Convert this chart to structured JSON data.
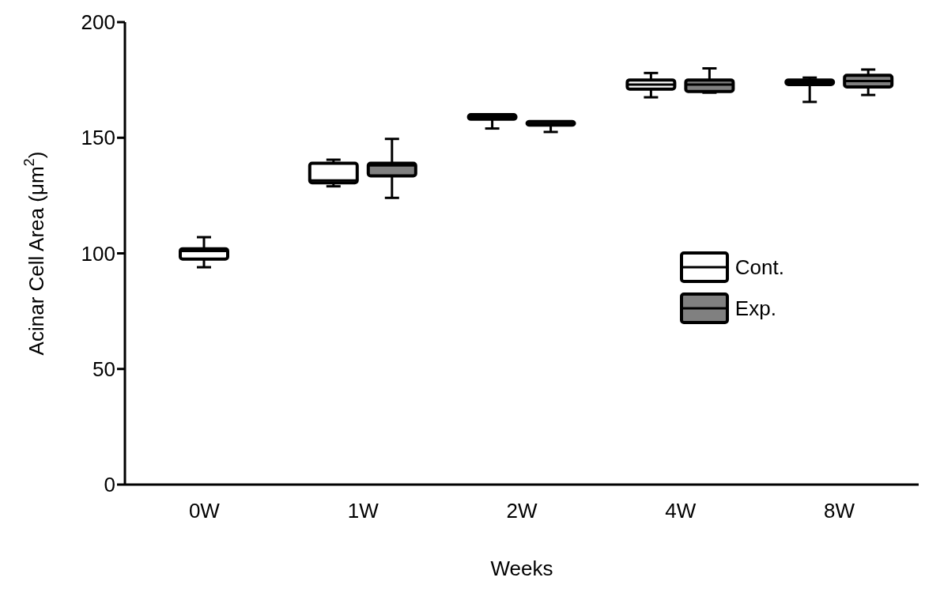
{
  "chart_data": {
    "type": "box",
    "xlabel": "Weeks",
    "ylabel": "Acinar Cell Area (μm$^{2}$)",
    "categories": [
      "0W",
      "1W",
      "2W",
      "4W",
      "8W"
    ],
    "ylim": [
      0,
      200
    ],
    "yticks": [
      0,
      50,
      100,
      150,
      200
    ],
    "grid": false,
    "legend": "right",
    "series": [
      {
        "name": "Cont.",
        "color": "#ffffff",
        "boxes": [
          {
            "low": 94,
            "q1": 97.5,
            "median": 101,
            "q3": 102,
            "high": 107
          },
          {
            "low": 129,
            "q1": 130.5,
            "median": 131.5,
            "q3": 139,
            "high": 140.5
          },
          {
            "low": 154,
            "q1": 158,
            "median": 159,
            "q3": 160,
            "high": 160
          },
          {
            "low": 167.5,
            "q1": 171,
            "median": 173,
            "q3": 175,
            "high": 178
          },
          {
            "low": 165.5,
            "q1": 173,
            "median": 174,
            "q3": 175,
            "high": 176
          }
        ]
      },
      {
        "name": "Exp.",
        "color": "#808080",
        "boxes": [
          null,
          {
            "low": 124,
            "q1": 133.5,
            "median": 138,
            "q3": 139,
            "high": 149.5
          },
          {
            "low": 152.5,
            "q1": 155.5,
            "median": 156,
            "q3": 157,
            "high": 157
          },
          {
            "low": 169.5,
            "q1": 170,
            "median": 173,
            "q3": 175,
            "high": 180
          },
          {
            "low": 168.5,
            "q1": 172,
            "median": 174.5,
            "q3": 177,
            "high": 179.5
          }
        ]
      }
    ]
  }
}
